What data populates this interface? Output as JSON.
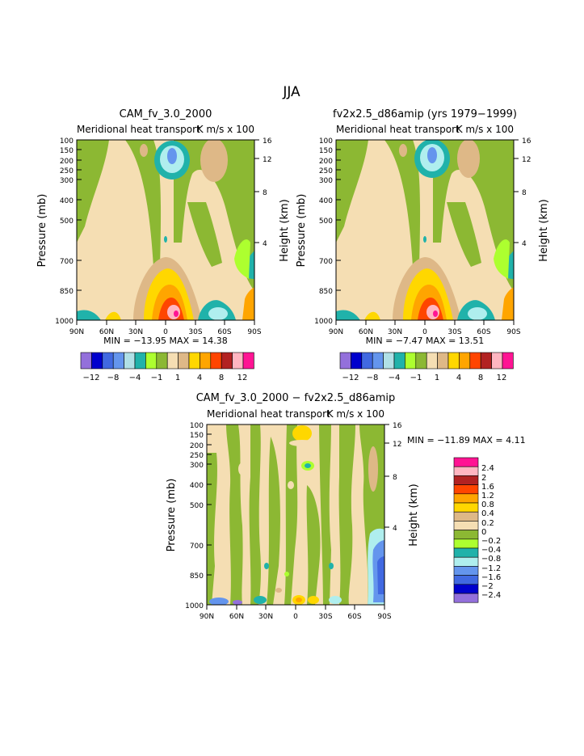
{
  "page": {
    "title": "JJA"
  },
  "palette": {
    "abs": [
      "#9370DB",
      "#0000CD",
      "#4169E1",
      "#6495ED",
      "#B0E0E6",
      "#20B2AA",
      "#ADFF2F",
      "#8CB833",
      "#F5DEB3",
      "#DEB887",
      "#FFD700",
      "#FFA500",
      "#FF4500",
      "#B22222",
      "#FFB6C1",
      "#FF1493"
    ],
    "diff": [
      "#9370DB",
      "#0000CD",
      "#4169E1",
      "#6495ED",
      "#AFEEEE",
      "#20B2AA",
      "#ADFF2F",
      "#8CB833",
      "#F5DEB3",
      "#DEB887",
      "#FFD700",
      "#FFA500",
      "#FF4500",
      "#B22222",
      "#FFB6C1",
      "#FF1493"
    ]
  },
  "chart_data": [
    {
      "id": "panel1",
      "type": "heatmap",
      "title": "CAM_fv_3.0_2000",
      "subtitle": "Meridional heat transport",
      "units": "K m/s x 100",
      "ylabel": "Pressure (mb)",
      "y2label": "Height (km)",
      "x_ticks": [
        "90N",
        "60N",
        "30N",
        "0",
        "30S",
        "60S",
        "90S"
      ],
      "y_ticks": [
        100,
        150,
        200,
        250,
        300,
        400,
        500,
        700,
        850,
        1000
      ],
      "y2_ticks": [
        16,
        12,
        8,
        4
      ],
      "ylim": [
        1000,
        100
      ],
      "stats": "MIN = −13.95   MAX =  14.38",
      "colorbar_labels": [
        "−12",
        "−8",
        "−4",
        "−1",
        "1",
        "4",
        "8",
        "12"
      ]
    },
    {
      "id": "panel2",
      "type": "heatmap",
      "title": "fv2x2.5_d86amip (yrs 1979−1999)",
      "subtitle": "Meridional heat transport",
      "units": "K m/s x 100",
      "ylabel": "Pressure (mb)",
      "y2label": "Height (km)",
      "x_ticks": [
        "90N",
        "60N",
        "30N",
        "0",
        "30S",
        "60S",
        "90S"
      ],
      "y_ticks": [
        100,
        150,
        200,
        250,
        300,
        400,
        500,
        700,
        850,
        1000
      ],
      "y2_ticks": [
        16,
        12,
        8,
        4
      ],
      "ylim": [
        1000,
        100
      ],
      "stats": "MIN =  −7.47   MAX =  13.51",
      "colorbar_labels": [
        "−12",
        "−8",
        "−4",
        "−1",
        "1",
        "4",
        "8",
        "12"
      ]
    },
    {
      "id": "panel3",
      "type": "heatmap",
      "title": "CAM_fv_3.0_2000 − fv2x2.5_d86amip",
      "subtitle": "Meridional heat transport",
      "units": "K m/s x 100",
      "ylabel": "Pressure (mb)",
      "y2label": "Height (km)",
      "x_ticks": [
        "90N",
        "60N",
        "30N",
        "0",
        "30S",
        "60S",
        "90S"
      ],
      "y_ticks": [
        100,
        150,
        200,
        250,
        300,
        400,
        500,
        700,
        850,
        1000
      ],
      "y2_ticks": [
        16,
        12,
        8,
        4
      ],
      "ylim": [
        1000,
        100
      ],
      "stats": "MIN = −11.89   MAX =    4.11",
      "colorbar_labels": [
        "2.4",
        "2",
        "1.6",
        "1.2",
        "0.8",
        "0.4",
        "0.2",
        "0",
        "−0.2",
        "−0.4",
        "−0.8",
        "−1.2",
        "−1.6",
        "−2",
        "−2.4"
      ]
    }
  ]
}
